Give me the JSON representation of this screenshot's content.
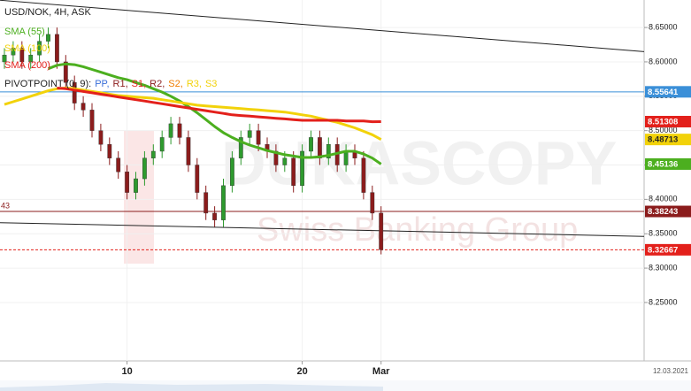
{
  "chart_data": {
    "type": "candlestick",
    "title": "USD/NOK, 4H, ASK",
    "watermark": [
      "DUKASCOPY",
      "Swiss Banking Group"
    ],
    "categories": [
      null,
      null,
      null,
      null,
      null,
      null,
      null,
      null,
      null,
      null,
      null,
      null,
      null,
      null,
      "10",
      null,
      null,
      null,
      null,
      null,
      null,
      null,
      null,
      null,
      null,
      null,
      null,
      null,
      null,
      null,
      null,
      null,
      null,
      null,
      "20",
      null,
      null,
      null,
      null,
      null,
      null,
      null,
      null,
      "Mar"
    ],
    "x_end_label": "12.03.2021",
    "up_color": "#2e9a2e",
    "down_color": "#8b1c1c",
    "open": [
      8.6,
      8.61,
      8.62,
      8.6,
      8.61,
      8.63,
      8.64,
      8.6,
      8.57,
      8.54,
      8.53,
      8.5,
      8.48,
      8.46,
      8.44,
      8.41,
      8.43,
      8.46,
      8.47,
      8.49,
      8.51,
      8.49,
      8.45,
      8.41,
      8.38,
      8.37,
      8.42,
      8.46,
      8.49,
      8.5,
      8.48,
      8.47,
      8.45,
      8.46,
      8.42,
      8.47,
      8.49,
      8.46,
      8.48,
      8.45,
      8.47,
      8.46,
      8.41,
      8.38
    ],
    "high": [
      8.62,
      8.63,
      8.63,
      8.62,
      8.64,
      8.65,
      8.65,
      8.61,
      8.58,
      8.55,
      8.54,
      8.51,
      8.49,
      8.47,
      8.45,
      8.44,
      8.47,
      8.48,
      8.5,
      8.52,
      8.52,
      8.5,
      8.46,
      8.42,
      8.39,
      8.43,
      8.47,
      8.5,
      8.51,
      8.51,
      8.49,
      8.48,
      8.47,
      8.47,
      8.48,
      8.5,
      8.5,
      8.49,
      8.49,
      8.48,
      8.48,
      8.47,
      8.42,
      8.39
    ],
    "low": [
      8.59,
      8.6,
      8.59,
      8.59,
      8.6,
      8.62,
      8.59,
      8.56,
      8.53,
      8.52,
      8.49,
      8.47,
      8.45,
      8.43,
      8.4,
      8.4,
      8.42,
      8.45,
      8.46,
      8.48,
      8.48,
      8.44,
      8.4,
      8.37,
      8.36,
      8.36,
      8.41,
      8.45,
      8.48,
      8.47,
      8.46,
      8.44,
      8.44,
      8.41,
      8.41,
      8.46,
      8.45,
      8.45,
      8.44,
      8.44,
      8.45,
      8.4,
      8.37,
      8.32
    ],
    "close": [
      8.61,
      8.62,
      8.6,
      8.61,
      8.63,
      8.64,
      8.6,
      8.57,
      8.54,
      8.53,
      8.5,
      8.48,
      8.46,
      8.44,
      8.41,
      8.43,
      8.46,
      8.47,
      8.49,
      8.51,
      8.49,
      8.45,
      8.41,
      8.38,
      8.37,
      8.42,
      8.46,
      8.49,
      8.5,
      8.48,
      8.47,
      8.45,
      8.46,
      8.42,
      8.47,
      8.49,
      8.46,
      8.48,
      8.45,
      8.47,
      8.46,
      8.41,
      8.38,
      8.32667
    ],
    "series": [
      {
        "name": "SMA (55)",
        "color": "#4caf1f",
        "values": [
          null,
          null,
          null,
          null,
          null,
          8.59,
          8.595,
          8.597,
          8.596,
          8.593,
          8.589,
          8.585,
          8.581,
          8.577,
          8.574,
          8.57,
          8.566,
          8.561,
          8.556,
          8.55,
          8.543,
          8.535,
          8.526,
          8.516,
          8.506,
          8.497,
          8.49,
          8.484,
          8.479,
          8.475,
          8.471,
          8.468,
          8.465,
          8.463,
          8.461,
          8.461,
          8.462,
          8.464,
          8.467,
          8.47,
          8.47,
          8.466,
          8.46,
          8.45136
        ]
      },
      {
        "name": "SMA (100)",
        "color": "#f2d20a",
        "values": [
          8.538,
          8.542,
          8.546,
          8.55,
          8.554,
          8.558,
          8.561,
          8.562,
          8.561,
          8.559,
          8.557,
          8.555,
          8.553,
          8.551,
          8.55,
          8.549,
          8.548,
          8.547,
          8.545,
          8.543,
          8.541,
          8.539,
          8.537,
          8.536,
          8.535,
          8.534,
          8.533,
          8.532,
          8.531,
          8.53,
          8.529,
          8.528,
          8.527,
          8.525,
          8.523,
          8.521,
          8.518,
          8.515,
          8.512,
          8.508,
          8.504,
          8.499,
          8.494,
          8.48713
        ]
      },
      {
        "name": "SMA (200)",
        "color": "#e3201b",
        "values": [
          null,
          null,
          null,
          null,
          null,
          null,
          8.562,
          8.561,
          8.559,
          8.557,
          8.555,
          8.553,
          8.551,
          8.549,
          8.547,
          8.545,
          8.543,
          8.541,
          8.539,
          8.537,
          8.535,
          8.533,
          8.531,
          8.529,
          8.527,
          8.525,
          8.523,
          8.522,
          8.521,
          8.52,
          8.519,
          8.518,
          8.517,
          8.516,
          8.515,
          8.515,
          8.515,
          8.515,
          8.515,
          8.514,
          8.514,
          8.514,
          8.513,
          8.51308
        ]
      }
    ],
    "pivot_legend": {
      "label": "PIVOTPOINT (0, 9):",
      "items": [
        {
          "name": "PP,",
          "color": "#3a6fd8"
        },
        {
          "name": "R1,",
          "color": "#8b1c1c"
        },
        {
          "name": "S1,",
          "color": "#e3201b"
        },
        {
          "name": "R2,",
          "color": "#8b1c1c"
        },
        {
          "name": "S2,",
          "color": "#f07d00"
        },
        {
          "name": "R3,",
          "color": "#f2d20a"
        },
        {
          "name": "S3",
          "color": "#f2d20a"
        }
      ]
    },
    "levels": [
      {
        "value": 8.55641,
        "color": "#3a8fd8",
        "dash": false
      },
      {
        "value": 8.38243,
        "color": "#8b1c1c",
        "dash": false,
        "left_label": "43"
      },
      {
        "value": 8.32667,
        "color": "#e3201b",
        "dash": true
      }
    ],
    "trendlines": [
      {
        "points": [
          [
            7,
            8.682
          ],
          [
            70,
            8.618
          ]
        ],
        "color": "#222222"
      },
      {
        "points": [
          [
            0,
            8.366
          ],
          [
            70,
            8.347
          ]
        ],
        "color": "#222222"
      }
    ],
    "ylim": [
      8.165,
      8.69
    ],
    "yticks": [
      {
        "value": 8.25,
        "label": "8.25000"
      },
      {
        "value": 8.3,
        "label": "8.30000"
      },
      {
        "value": 8.35,
        "label": "8.35000"
      },
      {
        "value": 8.4,
        "label": "8.40000"
      },
      {
        "value": 8.45,
        "label": "8.45000"
      },
      {
        "value": 8.5,
        "label": "8.50000"
      },
      {
        "value": 8.55,
        "label": "8.55000"
      },
      {
        "value": 8.6,
        "label": "8.60000"
      },
      {
        "value": 8.65,
        "label": "8.65000"
      }
    ],
    "grid": true
  }
}
